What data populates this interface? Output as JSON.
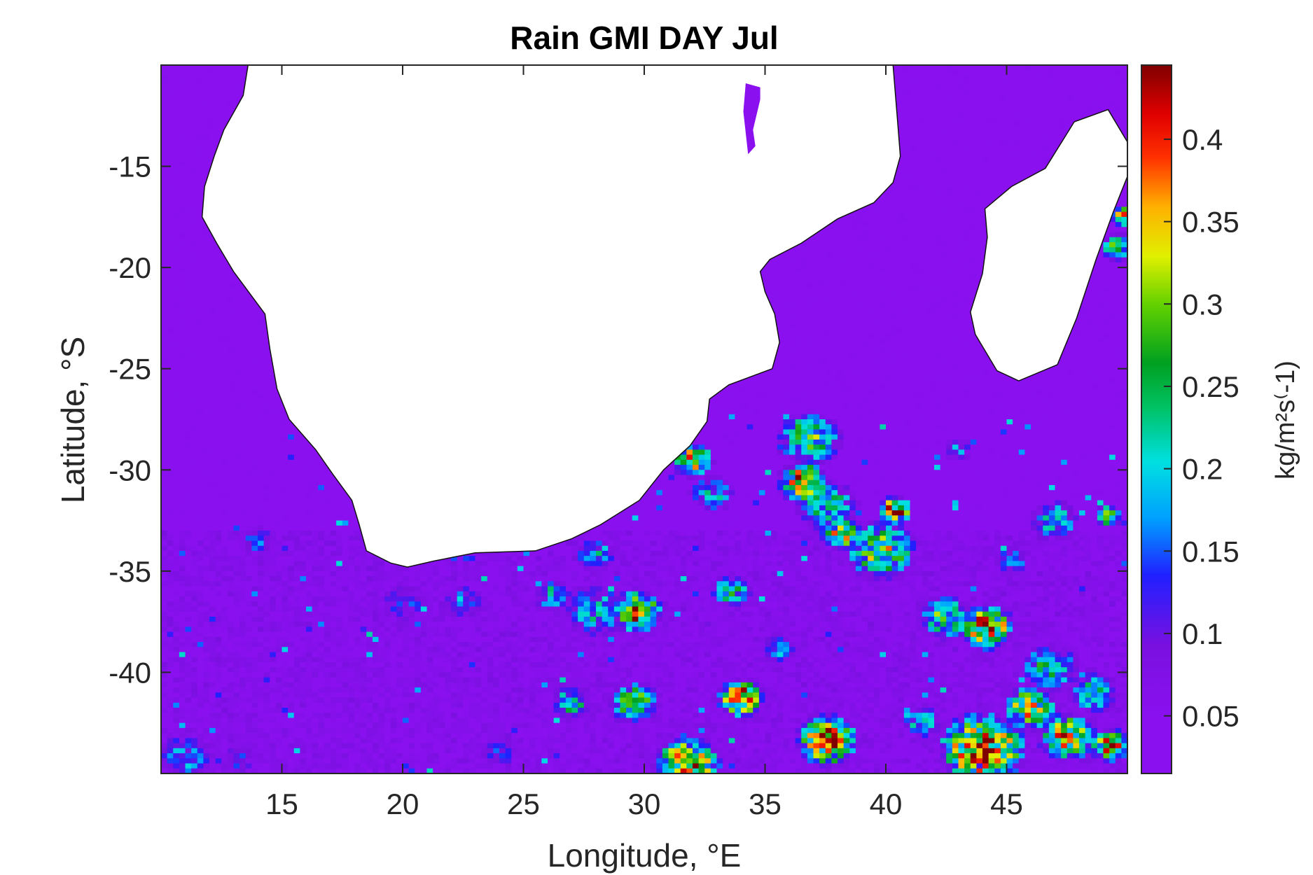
{
  "chart_data": {
    "type": "heatmap",
    "title": "Rain GMI DAY Jul",
    "xlabel": "Longitude, °E",
    "ylabel": "Latitude, °S",
    "xlim": [
      10,
      50
    ],
    "ylim": [
      -45,
      -10
    ],
    "x_ticks": [
      {
        "value": 15,
        "label": "15"
      },
      {
        "value": 20,
        "label": "20"
      },
      {
        "value": 25,
        "label": "25"
      },
      {
        "value": 30,
        "label": "30"
      },
      {
        "value": 35,
        "label": "35"
      },
      {
        "value": 40,
        "label": "40"
      },
      {
        "value": 45,
        "label": "45"
      }
    ],
    "y_ticks": [
      {
        "value": -15,
        "label": "-15"
      },
      {
        "value": -20,
        "label": "-20"
      },
      {
        "value": -25,
        "label": "-25"
      },
      {
        "value": -30,
        "label": "-30"
      },
      {
        "value": -35,
        "label": "-35"
      },
      {
        "value": -40,
        "label": "-40"
      }
    ],
    "colorbar": {
      "label": "kg/m²s⁽-1)",
      "range": [
        0.015,
        0.445
      ],
      "colormap": "purple-blue-cyan-green-yellow-red-darkred",
      "ticks": [
        {
          "value": 0.05,
          "label": "0.05"
        },
        {
          "value": 0.1,
          "label": "0.1"
        },
        {
          "value": 0.15,
          "label": "0.15"
        },
        {
          "value": 0.2,
          "label": "0.2"
        },
        {
          "value": 0.25,
          "label": "0.25"
        },
        {
          "value": 0.3,
          "label": "0.3"
        },
        {
          "value": 0.35,
          "label": "0.35"
        },
        {
          "value": 0.4,
          "label": "0.4"
        }
      ]
    },
    "grid": false,
    "background_value": 0.04,
    "land_masks": {
      "africa": [
        [
          10.9,
          -10
        ],
        [
          13.6,
          -10
        ],
        [
          13.4,
          -11.5
        ],
        [
          12.6,
          -13.2
        ],
        [
          12.2,
          -14.5
        ],
        [
          11.8,
          -16
        ],
        [
          11.7,
          -17.5
        ],
        [
          12.3,
          -18.8
        ],
        [
          13.0,
          -20.2
        ],
        [
          14.3,
          -22.3
        ],
        [
          14.5,
          -24
        ],
        [
          14.8,
          -26
        ],
        [
          15.3,
          -27.5
        ],
        [
          16.4,
          -29
        ],
        [
          17.1,
          -30.2
        ],
        [
          17.9,
          -31.5
        ],
        [
          18.2,
          -32.7
        ],
        [
          18.5,
          -34.0
        ],
        [
          19.5,
          -34.6
        ],
        [
          20.2,
          -34.8
        ],
        [
          21.3,
          -34.5
        ],
        [
          23.0,
          -34.1
        ],
        [
          25.5,
          -34.0
        ],
        [
          27.0,
          -33.4
        ],
        [
          28.2,
          -32.7
        ],
        [
          29.8,
          -31.5
        ],
        [
          30.8,
          -30.0
        ],
        [
          31.9,
          -28.8
        ],
        [
          32.6,
          -27.6
        ],
        [
          32.7,
          -26.5
        ],
        [
          33.5,
          -25.8
        ],
        [
          35.3,
          -25.0
        ],
        [
          35.6,
          -23.7
        ],
        [
          35.4,
          -22.3
        ],
        [
          35.0,
          -21.2
        ],
        [
          34.8,
          -20.2
        ],
        [
          35.2,
          -19.6
        ],
        [
          36.5,
          -18.8
        ],
        [
          38.0,
          -17.6
        ],
        [
          39.5,
          -16.8
        ],
        [
          40.3,
          -15.8
        ],
        [
          40.6,
          -14.5
        ],
        [
          40.5,
          -13.0
        ],
        [
          40.4,
          -11.5
        ],
        [
          40.3,
          -10
        ]
      ],
      "madagascar": [
        [
          47.8,
          -12.8
        ],
        [
          49.2,
          -12.2
        ],
        [
          50.0,
          -13.8
        ],
        [
          50.0,
          -15.5
        ],
        [
          49.4,
          -17.3
        ],
        [
          48.7,
          -19.6
        ],
        [
          47.9,
          -22.5
        ],
        [
          47.1,
          -24.8
        ],
        [
          45.5,
          -25.6
        ],
        [
          44.6,
          -25.1
        ],
        [
          43.7,
          -23.3
        ],
        [
          43.5,
          -22.2
        ],
        [
          44.0,
          -20.3
        ],
        [
          44.2,
          -18.5
        ],
        [
          44.1,
          -17.1
        ],
        [
          45.2,
          -16.0
        ],
        [
          46.6,
          -15.1
        ]
      ],
      "lake": [
        [
          34.2,
          -10.9
        ],
        [
          34.8,
          -11.1
        ],
        [
          34.8,
          -11.7
        ],
        [
          34.5,
          -13.2
        ],
        [
          34.6,
          -14.0
        ],
        [
          34.3,
          -14.4
        ],
        [
          34.1,
          -12.3
        ]
      ]
    },
    "rain_features": [
      {
        "lon": 36.8,
        "lat": -28.5,
        "r": 1.6,
        "v": 0.3
      },
      {
        "lon": 36.6,
        "lat": -30.6,
        "r": 1.2,
        "v": 0.42
      },
      {
        "lon": 37.6,
        "lat": -31.8,
        "r": 1.5,
        "v": 0.26
      },
      {
        "lon": 39.8,
        "lat": -34.0,
        "r": 1.7,
        "v": 0.33
      },
      {
        "lon": 40.4,
        "lat": -32.0,
        "r": 0.8,
        "v": 0.44
      },
      {
        "lon": 38.2,
        "lat": -33.2,
        "r": 1.0,
        "v": 0.38
      },
      {
        "lon": 32.0,
        "lat": -29.5,
        "r": 1.0,
        "v": 0.4
      },
      {
        "lon": 32.8,
        "lat": -31.2,
        "r": 1.1,
        "v": 0.22
      },
      {
        "lon": 29.7,
        "lat": -37.0,
        "r": 1.2,
        "v": 0.44
      },
      {
        "lon": 28.0,
        "lat": -37.0,
        "r": 1.6,
        "v": 0.22
      },
      {
        "lon": 26.2,
        "lat": -36.2,
        "r": 0.9,
        "v": 0.24
      },
      {
        "lon": 33.6,
        "lat": -36.0,
        "r": 1.0,
        "v": 0.25
      },
      {
        "lon": 34.0,
        "lat": -41.3,
        "r": 1.1,
        "v": 0.44
      },
      {
        "lon": 29.6,
        "lat": -41.5,
        "r": 1.2,
        "v": 0.32
      },
      {
        "lon": 27.0,
        "lat": -41.5,
        "r": 0.9,
        "v": 0.28
      },
      {
        "lon": 37.6,
        "lat": -43.4,
        "r": 1.5,
        "v": 0.44
      },
      {
        "lon": 31.8,
        "lat": -44.6,
        "r": 1.6,
        "v": 0.44
      },
      {
        "lon": 44.0,
        "lat": -43.8,
        "r": 2.1,
        "v": 0.45
      },
      {
        "lon": 47.5,
        "lat": -43.2,
        "r": 1.4,
        "v": 0.38
      },
      {
        "lon": 49.3,
        "lat": -43.6,
        "r": 1.0,
        "v": 0.4
      },
      {
        "lon": 44.2,
        "lat": -37.8,
        "r": 1.3,
        "v": 0.44
      },
      {
        "lon": 42.5,
        "lat": -37.3,
        "r": 1.3,
        "v": 0.3
      },
      {
        "lon": 46.8,
        "lat": -39.8,
        "r": 1.4,
        "v": 0.27
      },
      {
        "lon": 46.0,
        "lat": -41.8,
        "r": 1.3,
        "v": 0.38
      },
      {
        "lon": 48.6,
        "lat": -41.0,
        "r": 1.2,
        "v": 0.25
      },
      {
        "lon": 47.0,
        "lat": -32.5,
        "r": 1.2,
        "v": 0.24
      },
      {
        "lon": 45.2,
        "lat": -34.5,
        "r": 0.8,
        "v": 0.2
      },
      {
        "lon": 49.2,
        "lat": -32.3,
        "r": 0.6,
        "v": 0.4
      },
      {
        "lon": 49.6,
        "lat": -19.0,
        "r": 0.8,
        "v": 0.3
      },
      {
        "lon": 49.8,
        "lat": -17.5,
        "r": 0.6,
        "v": 0.4
      },
      {
        "lon": 20.0,
        "lat": -36.6,
        "r": 1.2,
        "v": 0.16
      },
      {
        "lon": 22.5,
        "lat": -36.5,
        "r": 1.0,
        "v": 0.18
      },
      {
        "lon": 14.0,
        "lat": -33.5,
        "r": 0.8,
        "v": 0.18
      },
      {
        "lon": 11.0,
        "lat": -44.2,
        "r": 1.4,
        "v": 0.19
      },
      {
        "lon": 13.2,
        "lat": -44.3,
        "r": 0.9,
        "v": 0.15
      },
      {
        "lon": 28.0,
        "lat": -34.2,
        "r": 1.0,
        "v": 0.22
      },
      {
        "lon": 24.0,
        "lat": -44.0,
        "r": 1.0,
        "v": 0.14
      },
      {
        "lon": 41.5,
        "lat": -42.5,
        "r": 1.0,
        "v": 0.22
      },
      {
        "lon": 35.5,
        "lat": -38.8,
        "r": 0.9,
        "v": 0.2
      },
      {
        "lon": 43.0,
        "lat": -29.0,
        "r": 0.7,
        "v": 0.18
      }
    ]
  }
}
